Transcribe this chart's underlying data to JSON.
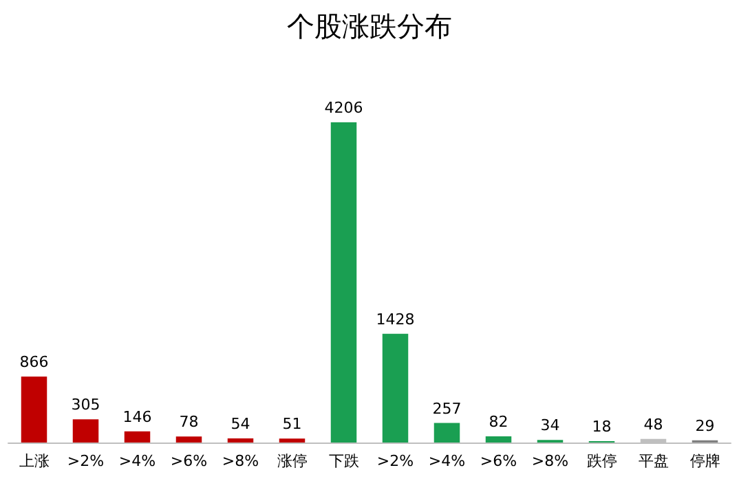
{
  "chart_data": {
    "type": "bar",
    "title": "个股涨跌分布",
    "categories": [
      "上涨",
      ">2%",
      ">4%",
      ">6%",
      ">8%",
      "涨停",
      "下跌",
      ">2%",
      ">4%",
      ">6%",
      ">8%",
      "跌停",
      "平盘",
      "停牌"
    ],
    "values": [
      866,
      305,
      146,
      78,
      54,
      51,
      4206,
      1428,
      257,
      82,
      34,
      18,
      48,
      29
    ],
    "colors": [
      "#c00000",
      "#c00000",
      "#c00000",
      "#c00000",
      "#c00000",
      "#c00000",
      "#1a9f52",
      "#1a9f52",
      "#1a9f52",
      "#1a9f52",
      "#1a9f52",
      "#1a9f52",
      "#bfbfbf",
      "#7f7f7f"
    ],
    "data_labels": true
  }
}
